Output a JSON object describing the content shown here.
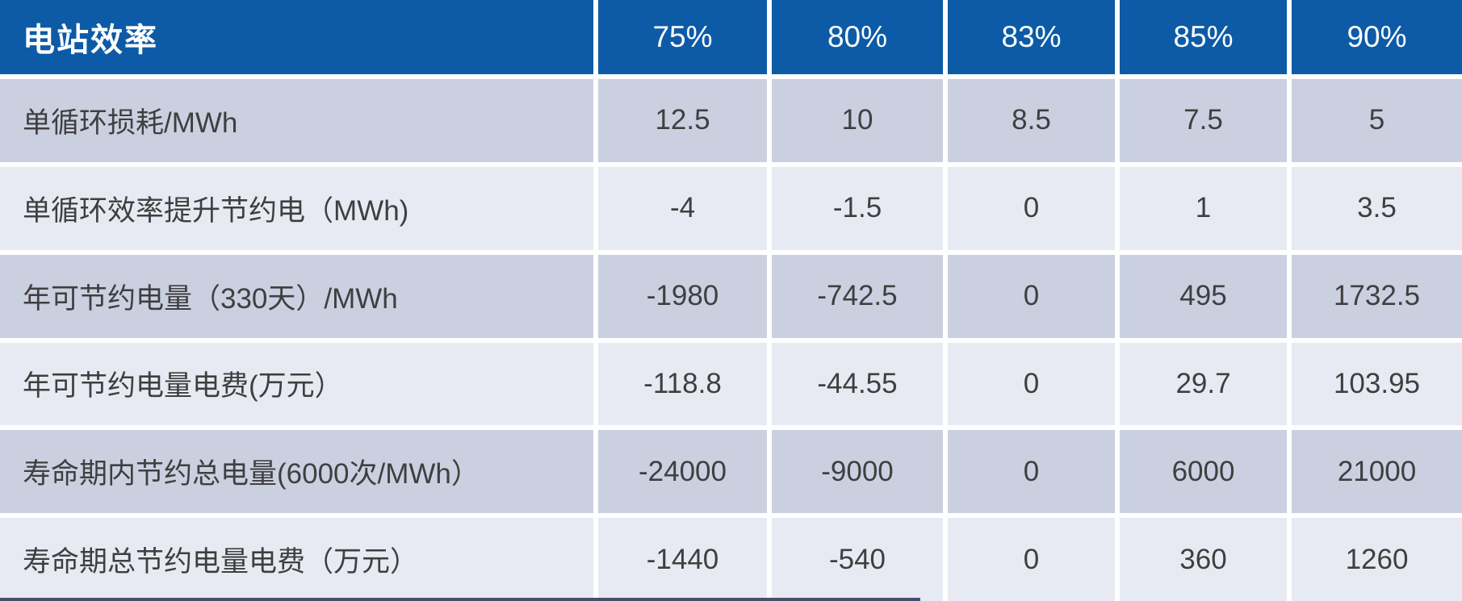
{
  "table": {
    "header": {
      "label": "电站效率",
      "columns": [
        "75%",
        "80%",
        "83%",
        "85%",
        "90%"
      ]
    },
    "rows": [
      {
        "label": "单循环损耗/MWh",
        "values": [
          "12.5",
          "10",
          "8.5",
          "7.5",
          "5"
        ]
      },
      {
        "label": "单循环效率提升节约电（MWh)",
        "values": [
          "-4",
          "-1.5",
          "0",
          "1",
          "3.5"
        ]
      },
      {
        "label": "年可节约电量（330天）/MWh",
        "values": [
          "-1980",
          "-742.5",
          "0",
          "495",
          "1732.5"
        ]
      },
      {
        "label": "年可节约电量电费(万元）",
        "values": [
          "-118.8",
          "-44.55",
          "0",
          "29.7",
          "103.95"
        ]
      },
      {
        "label": "寿命期内节约总电量(6000次/MWh）",
        "values": [
          "-24000",
          "-9000",
          "0",
          "6000",
          "21000"
        ]
      },
      {
        "label": "寿命期总节约电量电费（万元）",
        "values": [
          "-1440",
          "-540",
          "0",
          "360",
          "1260"
        ]
      }
    ]
  },
  "colors": {
    "header_bg": "#0d5ba6",
    "header_text": "#ffffff",
    "row_odd_bg": "#cad0e0",
    "row_even_bg": "#e8eaf3",
    "body_text": "#3f3f3f",
    "gutter": "#ffffff",
    "bottom_line": "#47506a"
  },
  "chart_data": {
    "type": "table",
    "title": "电站效率",
    "categories": [
      "75%",
      "80%",
      "83%",
      "85%",
      "90%"
    ],
    "series": [
      {
        "name": "单循环损耗/MWh",
        "values": [
          12.5,
          10,
          8.5,
          7.5,
          5
        ]
      },
      {
        "name": "单循环效率提升节约电（MWh)",
        "values": [
          -4,
          -1.5,
          0,
          1,
          3.5
        ]
      },
      {
        "name": "年可节约电量（330天）/MWh",
        "values": [
          -1980,
          -742.5,
          0,
          495,
          1732.5
        ]
      },
      {
        "name": "年可节约电量电费(万元）",
        "values": [
          -118.8,
          -44.55,
          0,
          29.7,
          103.95
        ]
      },
      {
        "name": "寿命期内节约总电量(6000次/MWh）",
        "values": [
          -24000,
          -9000,
          0,
          6000,
          21000
        ]
      },
      {
        "name": "寿命期总节约电量电费（万元）",
        "values": [
          -1440,
          -540,
          0,
          360,
          1260
        ]
      }
    ]
  }
}
